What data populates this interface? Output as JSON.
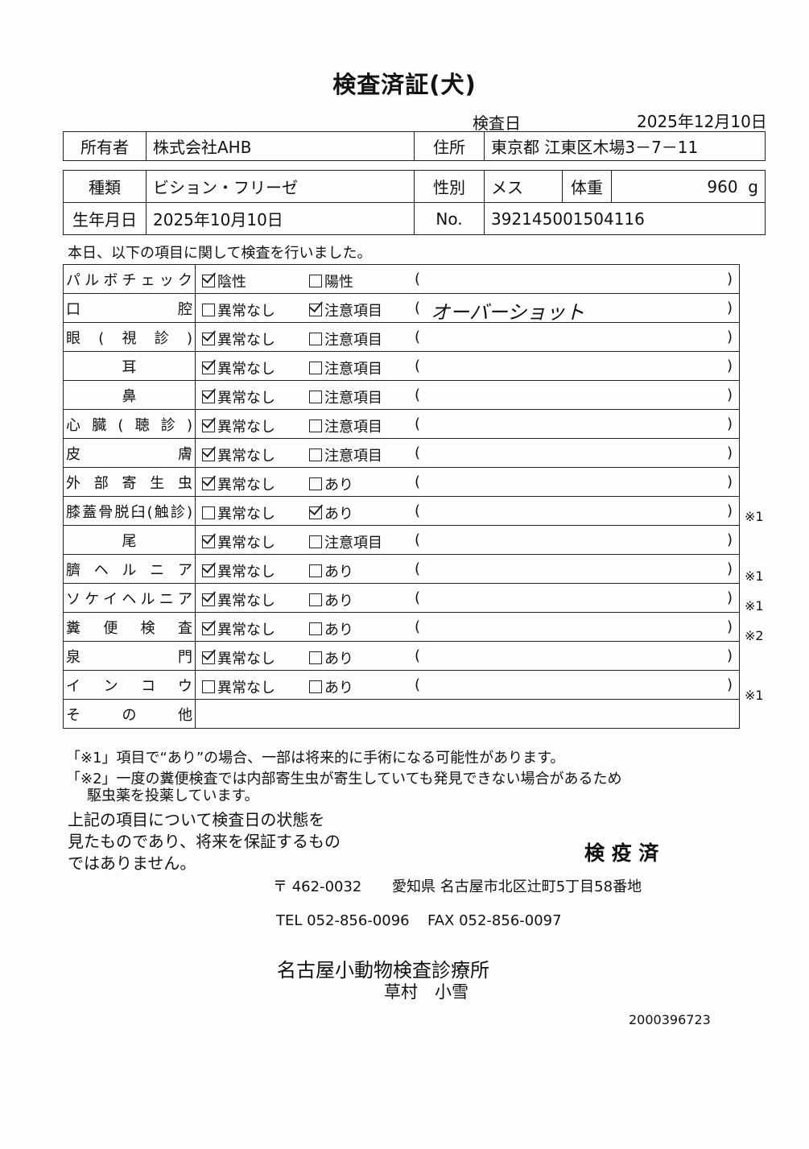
{
  "title": "検査済証(犬)",
  "exam_date_label": "検査日",
  "exam_date": "2025年12月10日",
  "owner": {
    "label": "所有者",
    "value": "株式会社AHB",
    "address_label": "住所",
    "address": "東京都 江東区木場3－7－11"
  },
  "pet": {
    "breed_label": "種類",
    "breed": "ビション・フリーゼ",
    "sex_label": "性別",
    "sex": "メス",
    "weight_label": "体重",
    "weight": "960",
    "weight_unit": "g",
    "dob_label": "生年月日",
    "dob": "2025年10月10日",
    "no_label": "No.",
    "no": "392145001504116"
  },
  "intro": "本日、以下の項目に関して検査を行いました。",
  "rows": [
    {
      "label": "パルボチェック",
      "opt1": "陰性",
      "c1": true,
      "opt2": "陽性",
      "c2": false,
      "note": "",
      "mark": ""
    },
    {
      "label": "口腔",
      "opt1": "異常なし",
      "c1": false,
      "opt2": "注意項目",
      "c2": true,
      "note": "オーバーショット",
      "mark": ""
    },
    {
      "label": "眼(視診)",
      "opt1": "異常なし",
      "c1": true,
      "opt2": "注意項目",
      "c2": false,
      "note": "",
      "mark": ""
    },
    {
      "label": "耳",
      "opt1": "異常なし",
      "c1": true,
      "opt2": "注意項目",
      "c2": false,
      "note": "",
      "mark": "",
      "center": true
    },
    {
      "label": "鼻",
      "opt1": "異常なし",
      "c1": true,
      "opt2": "注意項目",
      "c2": false,
      "note": "",
      "mark": "",
      "center": true
    },
    {
      "label": "心臓(聴診)",
      "opt1": "異常なし",
      "c1": true,
      "opt2": "注意項目",
      "c2": false,
      "note": "",
      "mark": ""
    },
    {
      "label": "皮膚",
      "opt1": "異常なし",
      "c1": true,
      "opt2": "注意項目",
      "c2": false,
      "note": "",
      "mark": ""
    },
    {
      "label": "外部寄生虫",
      "opt1": "異常なし",
      "c1": true,
      "opt2": "あり",
      "c2": false,
      "note": "",
      "mark": ""
    },
    {
      "label": "膝蓋骨脱臼(触診)",
      "opt1": "異常なし",
      "c1": false,
      "opt2": "あり",
      "c2": true,
      "note": "",
      "mark": "※1"
    },
    {
      "label": "尾",
      "opt1": "異常なし",
      "c1": true,
      "opt2": "注意項目",
      "c2": false,
      "note": "",
      "mark": "",
      "center": true
    },
    {
      "label": "臍ヘルニア",
      "opt1": "異常なし",
      "c1": true,
      "opt2": "あり",
      "c2": false,
      "note": "",
      "mark": "※1"
    },
    {
      "label": "ソケイヘルニア",
      "opt1": "異常なし",
      "c1": true,
      "opt2": "あり",
      "c2": false,
      "note": "",
      "mark": "※1"
    },
    {
      "label": "糞便検査",
      "opt1": "異常なし",
      "c1": true,
      "opt2": "あり",
      "c2": false,
      "note": "",
      "mark": "※2"
    },
    {
      "label": "泉門",
      "opt1": "異常なし",
      "c1": true,
      "opt2": "あり",
      "c2": false,
      "note": "",
      "mark": ""
    },
    {
      "label": "インコウ",
      "opt1": "異常なし",
      "c1": false,
      "opt2": "あり",
      "c2": false,
      "note": "",
      "mark": "※1"
    },
    {
      "label": "その他",
      "other": true
    }
  ],
  "footnote1": "「※1」項目で“あり”の場合、一部は将来的に手術になる可能性があります。",
  "footnote2a": "「※2」一度の糞便検査では内部寄生虫が寄生していても発見できない場合があるため",
  "footnote2b": "駆虫薬を投薬しています。",
  "disclaimer": [
    "上記の項目について検査日の状態を",
    "見たものであり、将来を保証するもの",
    "ではありません。"
  ],
  "stamp": "検 疫 済",
  "postal": "〒 462-0032",
  "clinic_address": "愛知県 名古屋市北区辻町5丁目58番地",
  "tel": "TEL 052-856-0096",
  "fax": "FAX 052-856-0097",
  "clinic_name": "名古屋小動物検査診療所",
  "doctor": "草村　小雪",
  "doc_no": "2000396723"
}
